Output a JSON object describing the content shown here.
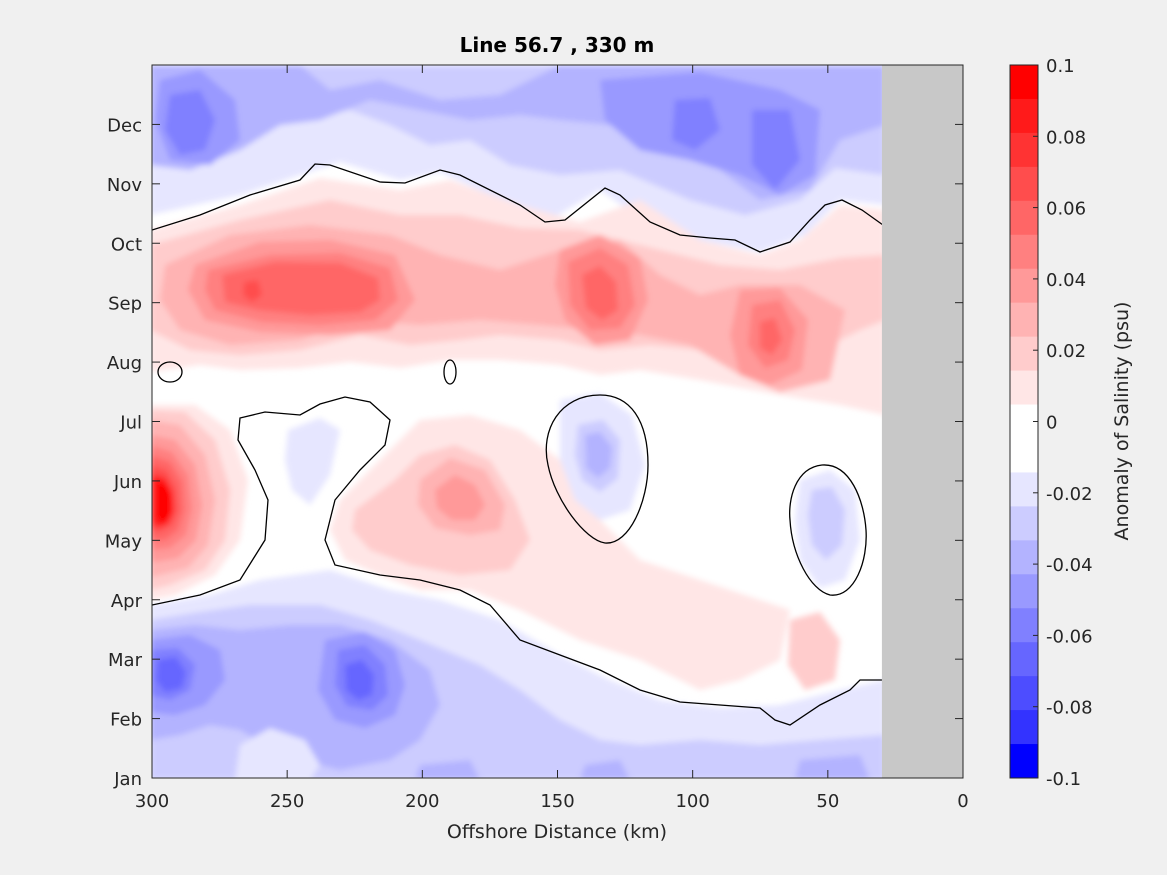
{
  "chart_data": {
    "type": "heatmap",
    "subtype": "filled-contour",
    "title": "Line 56.7 , 330 m",
    "xlabel": "Offshore Distance (km)",
    "colorbar_label": "Anomaly of Salinity (psu)",
    "x_reversed": true,
    "xlim": [
      0,
      300
    ],
    "x_ticks": [
      "300",
      "250",
      "200",
      "150",
      "100",
      "50",
      "0"
    ],
    "y_ticks": [
      "Jan",
      "Feb",
      "Mar",
      "Apr",
      "May",
      "Jun",
      "Jul",
      "Aug",
      "Sep",
      "Oct",
      "Nov",
      "Dec"
    ],
    "no_data_region_km": [
      0,
      30
    ],
    "zero_contour": "black line",
    "colorbar": {
      "min": -0.1,
      "max": 0.1,
      "step": 0.01,
      "tick_labels": [
        "0.1",
        "0.08",
        "0.06",
        "0.04",
        "0.02",
        "0",
        "-0.02",
        "-0.04",
        "-0.06",
        "-0.08",
        "-0.1"
      ],
      "colors": [
        "#ff0000",
        "#ff1a1a",
        "#ff3333",
        "#ff4d4d",
        "#ff6666",
        "#ff8080",
        "#ff9999",
        "#ffb3b3",
        "#ffcccc",
        "#ffe6e6",
        "#ffffff",
        "#ffffff",
        "#e6e6ff",
        "#ccccff",
        "#b3b3ff",
        "#9999ff",
        "#8080ff",
        "#6666ff",
        "#4d4dff",
        "#3333ff",
        "#0000ff"
      ]
    },
    "features": [
      {
        "name": "Sep positive core near 265-230 km",
        "x_km": 255,
        "month": "Sep",
        "value": 0.07
      },
      {
        "name": "Sep positive core near 135 km",
        "x_km": 135,
        "month": "Sep",
        "value": 0.06
      },
      {
        "name": "Aug-Sep positive core near 70 km",
        "x_km": 70,
        "month": "Aug",
        "value": 0.05
      },
      {
        "name": "May positive core at 300-290 km",
        "x_km": 292,
        "month": "May",
        "value": 0.1
      },
      {
        "name": "May positive patch near 185 km",
        "x_km": 185,
        "month": "May",
        "value": 0.03
      },
      {
        "name": "Jun negative patch near 135 km",
        "x_km": 135,
        "month": "Jun",
        "value": -0.02
      },
      {
        "name": "May negative patch near 50 km",
        "x_km": 50,
        "month": "May",
        "value": -0.01
      },
      {
        "name": "Dec negative core near 290 km",
        "x_km": 290,
        "month": "Dec",
        "value": -0.05
      },
      {
        "name": "Dec negative core near 95 km",
        "x_km": 95,
        "month": "Dec",
        "value": -0.05
      },
      {
        "name": "Dec negative core near 70 km",
        "x_km": 70,
        "month": "Dec",
        "value": -0.05
      },
      {
        "name": "Mar negative core near 295 km",
        "x_km": 295,
        "month": "Mar",
        "value": -0.05
      },
      {
        "name": "Mar negative core near 220 km",
        "x_km": 220,
        "month": "Mar",
        "value": -0.05
      }
    ]
  }
}
